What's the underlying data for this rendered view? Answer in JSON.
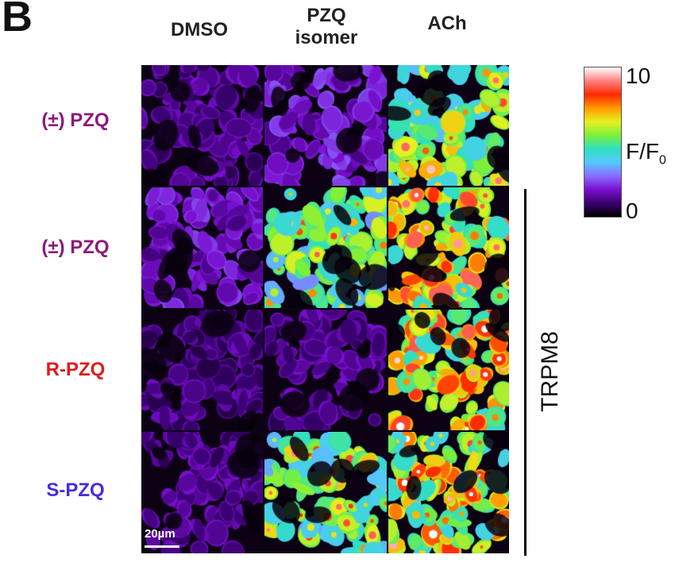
{
  "panel_letter": "B",
  "columns": [
    {
      "line1": "DMSO",
      "line2": ""
    },
    {
      "line1": "PZQ",
      "line2": "isomer"
    },
    {
      "line1": "ACh",
      "line2": ""
    }
  ],
  "rows": [
    {
      "label": "(±) PZQ",
      "color": "#8b1a7a",
      "intensity": [
        0.12,
        0.2,
        0.62
      ]
    },
    {
      "label": "(±) PZQ",
      "color": "#8b1a7a",
      "intensity": [
        0.18,
        0.55,
        0.78
      ]
    },
    {
      "label": "R-PZQ",
      "color": "#e01b1b",
      "intensity": [
        0.1,
        0.12,
        0.76
      ]
    },
    {
      "label": "S-PZQ",
      "color": "#4a2ae0",
      "intensity": [
        0.12,
        0.6,
        0.72
      ]
    }
  ],
  "group_label": "TRPM8",
  "scalebar_label": "20µm",
  "colorbar": {
    "max_label": "10",
    "min_label": "0",
    "axis_label": "F/F",
    "axis_subscript": "0",
    "colors": [
      "#000000",
      "#3a0070",
      "#7a10d0",
      "#8a6cff",
      "#55c8ff",
      "#2fe0c0",
      "#7cf03a",
      "#e8f020",
      "#ff9a00",
      "#ff2a00",
      "#ff8080",
      "#ffffff"
    ]
  }
}
